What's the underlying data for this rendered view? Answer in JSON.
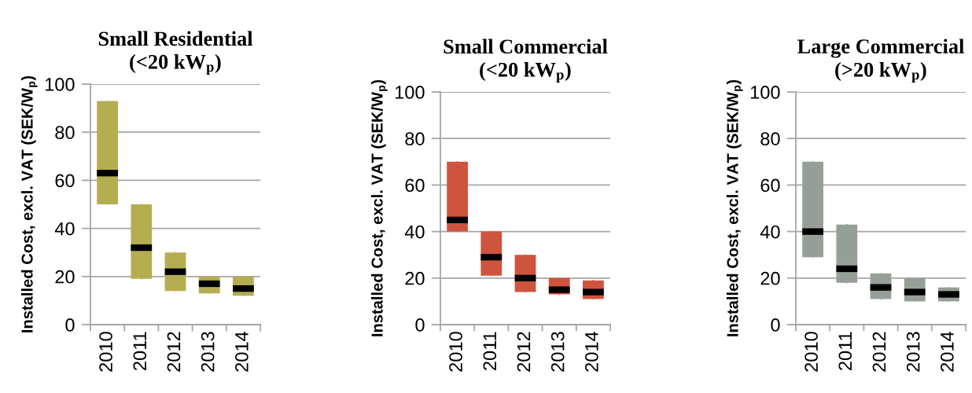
{
  "chart_data": [
    {
      "type": "box",
      "title": "Small Residential\n(<20 kW$_{p}$)",
      "ylabel": "Installed Cost, excl. VAT (SEK/W$_{p}$)",
      "categories": [
        "2010",
        "2011",
        "2012",
        "2013",
        "2014"
      ],
      "ylim": [
        0,
        100
      ],
      "yticks": [
        0,
        20,
        40,
        60,
        80,
        100
      ],
      "grid": "y",
      "legend": false,
      "series": [
        {
          "color": "#b5ad52",
          "boxes": [
            {
              "low": 50,
              "q1": 50,
              "median": 63,
              "q3": 93,
              "high": 93
            },
            {
              "low": 19,
              "q1": 19,
              "median": 32,
              "q3": 50,
              "high": 50
            },
            {
              "low": 14,
              "q1": 14,
              "median": 22,
              "q3": 30,
              "high": 30
            },
            {
              "low": 13,
              "q1": 13,
              "median": 17,
              "q3": 20,
              "high": 20
            },
            {
              "low": 12,
              "q1": 12,
              "median": 15,
              "q3": 20,
              "high": 20
            }
          ]
        }
      ]
    },
    {
      "type": "box",
      "title": "Small Commercial\n(<20 kW$_{p}$)",
      "ylabel": "Installed Cost, excl. VAT (SEK/W$_{p}$)",
      "categories": [
        "2010",
        "2011",
        "2012",
        "2013",
        "2014"
      ],
      "ylim": [
        0,
        100
      ],
      "yticks": [
        0,
        20,
        40,
        60,
        80,
        100
      ],
      "grid": "y",
      "legend": false,
      "series": [
        {
          "color": "#cf543e",
          "boxes": [
            {
              "low": 40,
              "q1": 40,
              "median": 45,
              "q3": 70,
              "high": 70
            },
            {
              "low": 21,
              "q1": 21,
              "median": 29,
              "q3": 40,
              "high": 40
            },
            {
              "low": 14,
              "q1": 14,
              "median": 20,
              "q3": 30,
              "high": 30
            },
            {
              "low": 13,
              "q1": 13,
              "median": 15,
              "q3": 20,
              "high": 20
            },
            {
              "low": 11,
              "q1": 11,
              "median": 14,
              "q3": 19,
              "high": 19
            }
          ]
        }
      ]
    },
    {
      "type": "box",
      "title": "Large Commercial\n(>20 kW$_{p}$)",
      "ylabel": "Installed Cost, excl. VAT (SEK/W$_{p}$)",
      "categories": [
        "2010",
        "2011",
        "2012",
        "2013",
        "2014"
      ],
      "ylim": [
        0,
        100
      ],
      "yticks": [
        0,
        20,
        40,
        60,
        80,
        100
      ],
      "grid": "y",
      "legend": false,
      "series": [
        {
          "color": "#959f96",
          "boxes": [
            {
              "low": 29,
              "q1": 29,
              "median": 40,
              "q3": 70,
              "high": 70
            },
            {
              "low": 18,
              "q1": 18,
              "median": 24,
              "q3": 43,
              "high": 43
            },
            {
              "low": 11,
              "q1": 11,
              "median": 16,
              "q3": 22,
              "high": 22
            },
            {
              "low": 10,
              "q1": 10,
              "median": 14,
              "q3": 20,
              "high": 20
            },
            {
              "low": 10,
              "q1": 10,
              "median": 13,
              "q3": 16,
              "high": 16
            }
          ]
        }
      ]
    }
  ]
}
